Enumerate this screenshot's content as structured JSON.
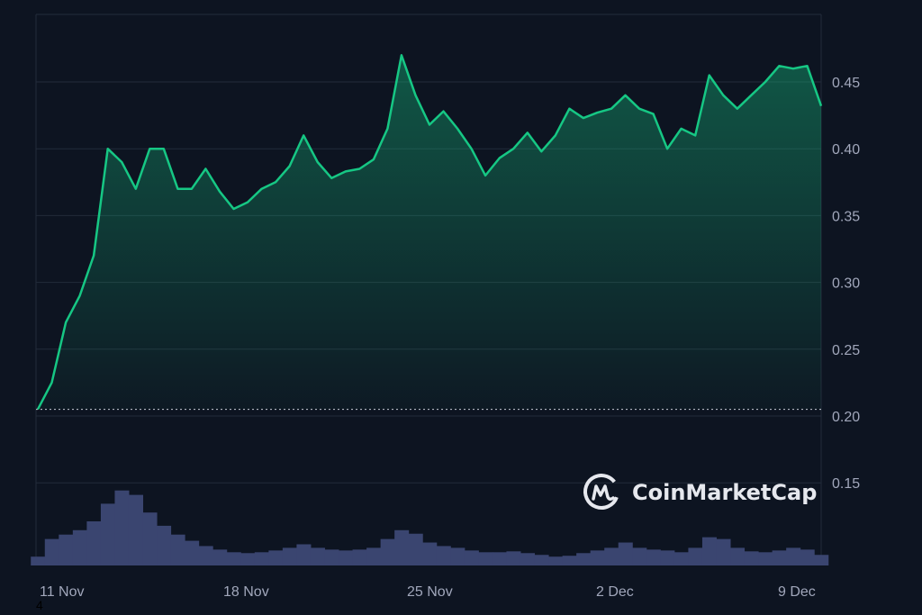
{
  "chart_data": {
    "type": "area",
    "title": "",
    "xlabel": "",
    "ylabel": "",
    "x_tick_labels": [
      "11 Nov",
      "18 Nov",
      "25 Nov",
      "2 Dec",
      "9 Dec"
    ],
    "x_range": [
      "11 Nov 00:00",
      "9 Dec 00:00"
    ],
    "ylim": [
      0.1,
      0.5
    ],
    "y_ticks": [
      "0.15",
      "0.20",
      "0.25",
      "0.30",
      "0.35",
      "0.40",
      "0.45"
    ],
    "reference_line": 0.205,
    "grid": true,
    "colors": {
      "line": "#16c784",
      "volume": "#3a4570",
      "grid": "#222b3a",
      "background": "#0d1421"
    },
    "x": [
      "11 Nov 00:00",
      "11 Nov 12:00",
      "12 Nov 00:00",
      "12 Nov 12:00",
      "13 Nov 00:00",
      "13 Nov 12:00",
      "14 Nov 00:00",
      "14 Nov 12:00",
      "15 Nov 00:00",
      "15 Nov 12:00",
      "16 Nov 00:00",
      "16 Nov 12:00",
      "17 Nov 00:00",
      "17 Nov 12:00",
      "18 Nov 00:00",
      "18 Nov 12:00",
      "19 Nov 00:00",
      "19 Nov 12:00",
      "20 Nov 00:00",
      "20 Nov 12:00",
      "21 Nov 00:00",
      "21 Nov 12:00",
      "22 Nov 00:00",
      "22 Nov 12:00",
      "23 Nov 00:00",
      "23 Nov 12:00",
      "24 Nov 00:00",
      "24 Nov 12:00",
      "25 Nov 00:00",
      "25 Nov 12:00",
      "26 Nov 00:00",
      "26 Nov 12:00",
      "27 Nov 00:00",
      "27 Nov 12:00",
      "28 Nov 00:00",
      "28 Nov 12:00",
      "29 Nov 00:00",
      "29 Nov 12:00",
      "30 Nov 00:00",
      "30 Nov 12:00",
      "1 Dec 00:00",
      "1 Dec 12:00",
      "2 Dec 00:00",
      "2 Dec 12:00",
      "3 Dec 00:00",
      "3 Dec 12:00",
      "4 Dec 00:00",
      "4 Dec 12:00",
      "5 Dec 00:00",
      "5 Dec 12:00",
      "6 Dec 00:00",
      "6 Dec 12:00",
      "7 Dec 00:00",
      "7 Dec 12:00",
      "8 Dec 00:00",
      "8 Dec 12:00",
      "9 Dec 00:00"
    ],
    "series": [
      {
        "values": [
          0.205,
          0.225,
          0.27,
          0.29,
          0.32,
          0.4,
          0.39,
          0.37,
          0.4,
          0.4,
          0.37,
          0.37,
          0.385,
          0.368,
          0.355,
          0.36,
          0.37,
          0.375,
          0.387,
          0.41,
          0.39,
          0.378,
          0.383,
          0.385,
          0.392,
          0.415,
          0.47,
          0.44,
          0.418,
          0.428,
          0.415,
          0.4,
          0.38,
          0.393,
          0.4,
          0.412,
          0.398,
          0.41,
          0.43,
          0.423,
          0.427,
          0.43,
          0.44,
          0.43,
          0.426,
          0.4,
          0.415,
          0.41,
          0.455,
          0.44,
          0.43,
          0.44,
          0.45,
          0.462,
          0.46,
          0.462,
          0.432
        ]
      },
      {
        "values": [
          10,
          30,
          35,
          40,
          50,
          70,
          85,
          80,
          60,
          45,
          35,
          28,
          22,
          18,
          15,
          14,
          15,
          17,
          20,
          24,
          20,
          18,
          17,
          18,
          20,
          30,
          40,
          36,
          26,
          22,
          20,
          17,
          15,
          15,
          16,
          14,
          12,
          10,
          11,
          14,
          17,
          20,
          26,
          20,
          18,
          17,
          15,
          20,
          32,
          30,
          20,
          16,
          15,
          17,
          20,
          18,
          12
        ]
      }
    ]
  },
  "watermark": {
    "text": "CoinMarketCap"
  },
  "stray_text": "4"
}
